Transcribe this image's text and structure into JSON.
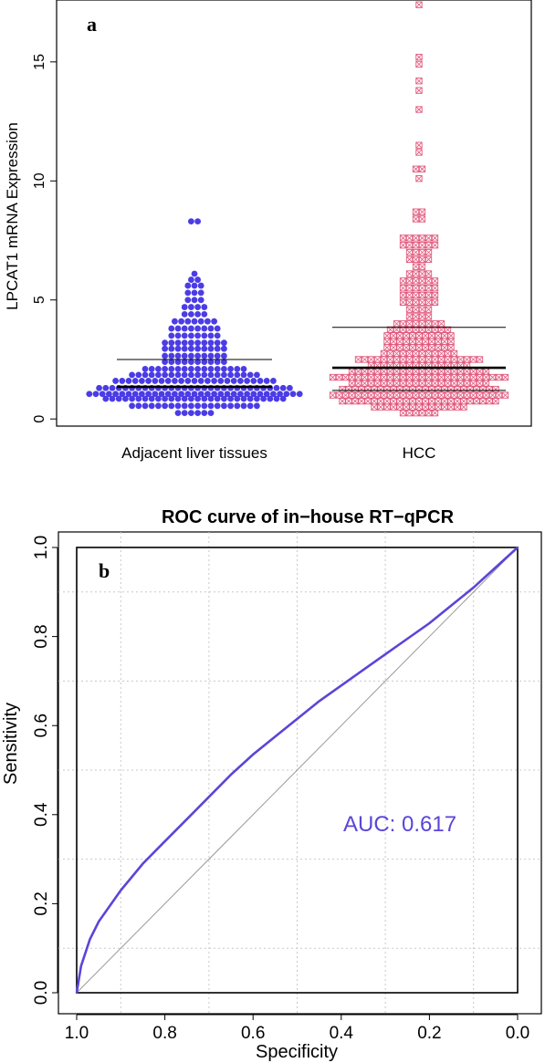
{
  "colors": {
    "adjacent": "#4b3ce6",
    "hcc": "#e0567a",
    "roc": "#5a45d8",
    "auc_text": "#5a45d8",
    "grid": "#c8c8c8",
    "diagonal": "#999999"
  },
  "chart_data": [
    {
      "type": "scatter",
      "panel_label": "a",
      "title": "",
      "xlabel": "",
      "ylabel": "LPCAT1 mRNA Expression",
      "ylim": [
        -0.3,
        17.6
      ],
      "yticks": [
        0,
        5,
        10,
        15
      ],
      "grid": false,
      "categories": [
        "Adjacent liver tissues",
        "HCC"
      ],
      "series": [
        {
          "category": "Adjacent liver tissues",
          "marker": "filled-circle",
          "median": 1.35,
          "q3": 2.5,
          "bins": [
            {
              "y": 0.25,
              "count": 6
            },
            {
              "y": 0.55,
              "count": 20
            },
            {
              "y": 0.85,
              "count": 28
            },
            {
              "y": 1.05,
              "count": 33
            },
            {
              "y": 1.3,
              "count": 30
            },
            {
              "y": 1.6,
              "count": 25
            },
            {
              "y": 1.85,
              "count": 20
            },
            {
              "y": 2.1,
              "count": 16
            },
            {
              "y": 2.4,
              "count": 10
            },
            {
              "y": 2.65,
              "count": 10
            },
            {
              "y": 2.95,
              "count": 10
            },
            {
              "y": 3.2,
              "count": 10
            },
            {
              "y": 3.5,
              "count": 8
            },
            {
              "y": 3.8,
              "count": 8
            },
            {
              "y": 4.1,
              "count": 7
            },
            {
              "y": 4.4,
              "count": 4
            },
            {
              "y": 4.7,
              "count": 4
            },
            {
              "y": 5.0,
              "count": 3
            },
            {
              "y": 5.3,
              "count": 3
            },
            {
              "y": 5.6,
              "count": 3
            },
            {
              "y": 5.85,
              "count": 2
            },
            {
              "y": 6.1,
              "count": 1
            },
            {
              "y": 8.3,
              "count": 2
            }
          ]
        },
        {
          "category": "HCC",
          "marker": "boxed-x",
          "q1": 1.2,
          "median": 2.15,
          "q3": 3.85,
          "bins": [
            {
              "y": 0.25,
              "count": 6
            },
            {
              "y": 0.5,
              "count": 15
            },
            {
              "y": 0.75,
              "count": 25
            },
            {
              "y": 1.0,
              "count": 28
            },
            {
              "y": 1.25,
              "count": 25
            },
            {
              "y": 1.5,
              "count": 22
            },
            {
              "y": 1.75,
              "count": 28
            },
            {
              "y": 2.0,
              "count": 22
            },
            {
              "y": 2.25,
              "count": 16
            },
            {
              "y": 2.5,
              "count": 20
            },
            {
              "y": 2.75,
              "count": 12
            },
            {
              "y": 3.0,
              "count": 11
            },
            {
              "y": 3.25,
              "count": 11
            },
            {
              "y": 3.5,
              "count": 11
            },
            {
              "y": 3.75,
              "count": 10
            },
            {
              "y": 4.0,
              "count": 8
            },
            {
              "y": 4.3,
              "count": 4
            },
            {
              "y": 4.6,
              "count": 4
            },
            {
              "y": 4.9,
              "count": 6
            },
            {
              "y": 5.2,
              "count": 6
            },
            {
              "y": 5.5,
              "count": 6
            },
            {
              "y": 5.8,
              "count": 6
            },
            {
              "y": 6.1,
              "count": 4
            },
            {
              "y": 6.4,
              "count": 2
            },
            {
              "y": 6.7,
              "count": 4
            },
            {
              "y": 7.0,
              "count": 4
            },
            {
              "y": 7.3,
              "count": 6
            },
            {
              "y": 7.6,
              "count": 6
            },
            {
              "y": 8.4,
              "count": 2
            },
            {
              "y": 8.7,
              "count": 2
            },
            {
              "y": 10.1,
              "count": 1
            },
            {
              "y": 10.5,
              "count": 2
            },
            {
              "y": 11.2,
              "count": 1
            },
            {
              "y": 11.5,
              "count": 1
            },
            {
              "y": 13.0,
              "count": 1
            },
            {
              "y": 13.8,
              "count": 1
            },
            {
              "y": 14.2,
              "count": 1
            },
            {
              "y": 14.9,
              "count": 1
            },
            {
              "y": 15.2,
              "count": 1
            },
            {
              "y": 17.4,
              "count": 1
            }
          ]
        }
      ]
    },
    {
      "type": "line",
      "panel_label": "b",
      "title": "ROC curve of in−house RT−qPCR",
      "xlabel": "Specificity",
      "ylabel": "Sensitivity",
      "xlim": [
        1.0,
        0.0
      ],
      "ylim": [
        0.0,
        1.0
      ],
      "xticks": [
        "1.0",
        "0.8",
        "0.6",
        "0.4",
        "0.2",
        "0.0"
      ],
      "yticks": [
        "0.0",
        "0.2",
        "0.4",
        "0.6",
        "0.8",
        "1.0"
      ],
      "grid": true,
      "auc_label": "AUC: 0.617",
      "series": [
        {
          "specificity": [
            1.0,
            0.99,
            0.97,
            0.95,
            0.9,
            0.85,
            0.8,
            0.75,
            0.7,
            0.65,
            0.6,
            0.55,
            0.5,
            0.45,
            0.4,
            0.35,
            0.3,
            0.25,
            0.2,
            0.15,
            0.1,
            0.05,
            0.0
          ],
          "sensitivity": [
            0.0,
            0.06,
            0.12,
            0.16,
            0.23,
            0.29,
            0.34,
            0.39,
            0.44,
            0.49,
            0.535,
            0.575,
            0.615,
            0.655,
            0.69,
            0.725,
            0.76,
            0.795,
            0.83,
            0.87,
            0.91,
            0.955,
            1.0
          ]
        }
      ],
      "reference_line": {
        "from": [
          1.0,
          0.0
        ],
        "to": [
          0.0,
          1.0
        ]
      }
    }
  ]
}
